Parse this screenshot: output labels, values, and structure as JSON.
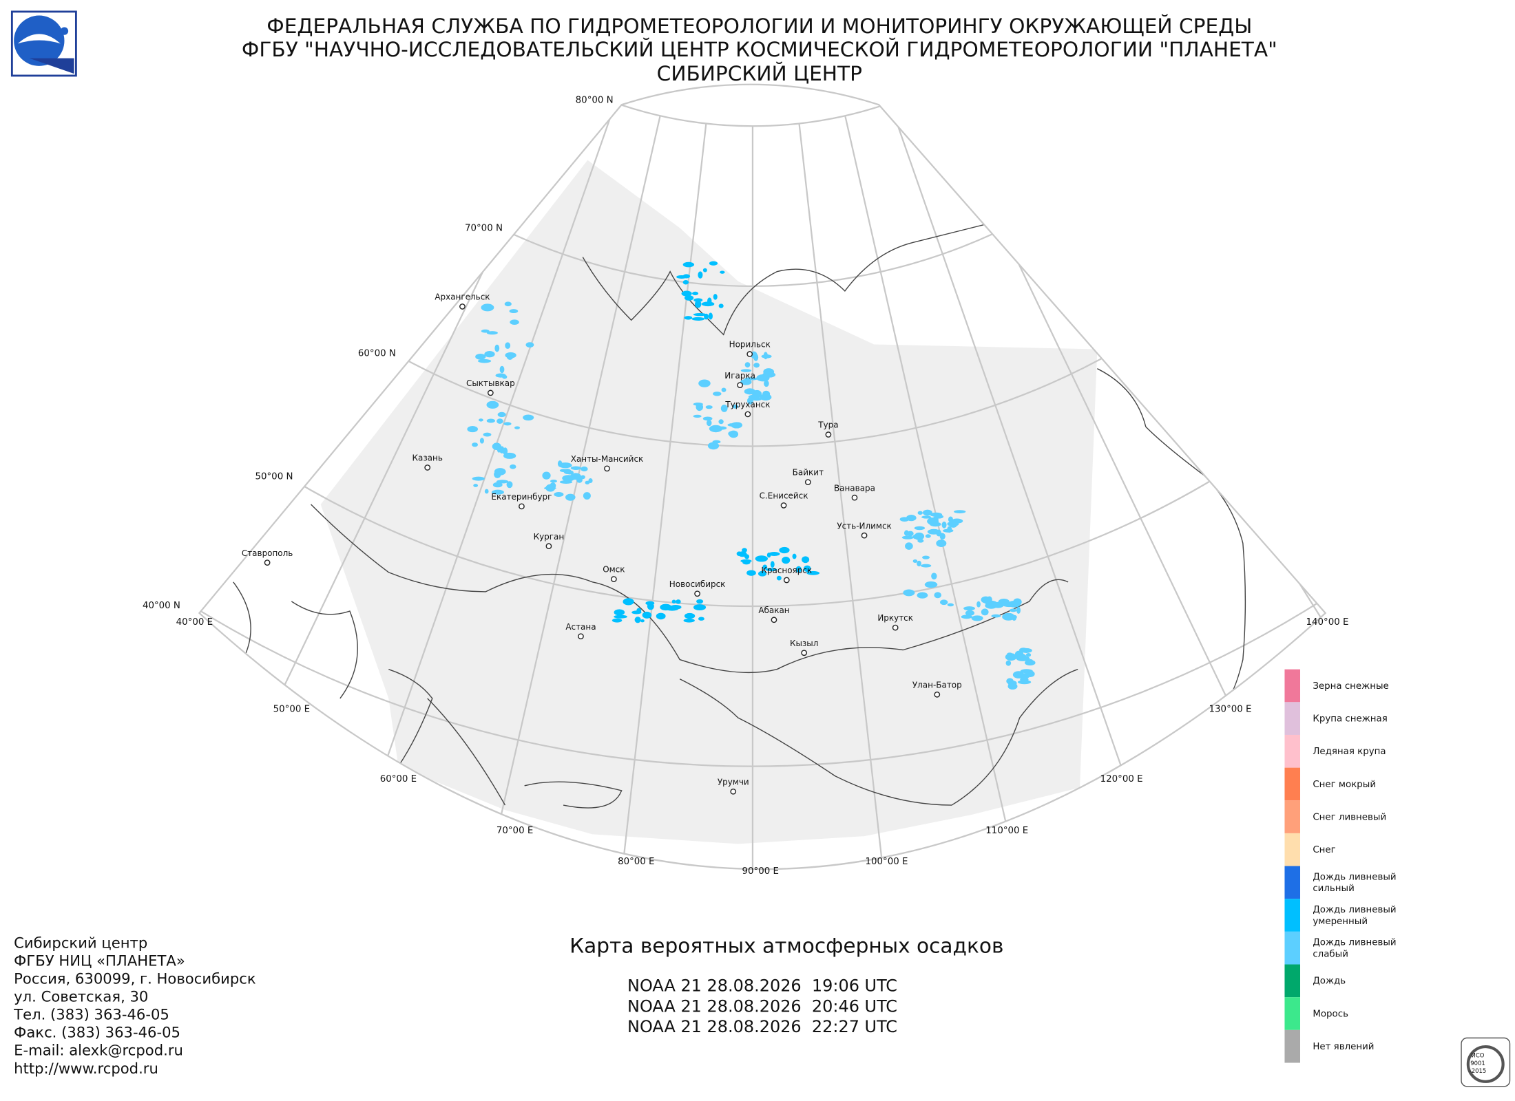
{
  "header": {
    "lines": [
      "ФЕДЕРАЛЬНАЯ СЛУЖБА ПО ГИДРОМЕТЕОРОЛОГИИ И МОНИТОРИНГУ ОКРУЖАЮЩЕЙ СРЕДЫ",
      "ФГБУ \"НАУЧНО-ИССЛЕДОВАТЕЛЬСКИЙ ЦЕНТР КОСМИЧЕСКОЙ ГИДРОМЕТЕОРОЛОГИИ \"ПЛАНЕТА\"",
      "СИБИРСКИЙ ЦЕНТР"
    ]
  },
  "map": {
    "lat_labels": [
      "80°00 N",
      "70°00 N",
      "60°00 N",
      "50°00 N",
      "40°00 N"
    ],
    "lon_labels": [
      "40°00 E",
      "50°00 E",
      "60°00 E",
      "70°00 E",
      "80°00 E",
      "90°00 E",
      "100°00 E",
      "110°00 E",
      "120°00 E",
      "130°00 E",
      "140°00 E"
    ],
    "cities": [
      "Архангельск",
      "Сыктывкар",
      "Казань",
      "Ставрополь",
      "Екатеринбург",
      "Курган",
      "Ханты-Мансийск",
      "Омск",
      "Астана",
      "Новосибирск",
      "Норильск",
      "Игарка",
      "Туруханск",
      "Тура",
      "Байкит",
      "Ванавара",
      "С.Енисейск",
      "Усть-Илимск",
      "Красноярск",
      "Абакан",
      "Кызыл",
      "Иркутск",
      "Улан-Батор",
      "Урумчи"
    ]
  },
  "legend": {
    "items": [
      {
        "label": [
          "Зерна снежные"
        ],
        "color": "#f0789a"
      },
      {
        "label": [
          "Крупа снежная"
        ],
        "color": "#e0c0dc"
      },
      {
        "label": [
          "Ледяная крупа"
        ],
        "color": "#ffc0cc"
      },
      {
        "label": [
          "Снег мокрый"
        ],
        "color": "#ff7f50"
      },
      {
        "label": [
          "Снег ливневый"
        ],
        "color": "#ffa07a"
      },
      {
        "label": [
          "Снег"
        ],
        "color": "#ffdead"
      },
      {
        "label": [
          "Дождь ливневый",
          "сильный"
        ],
        "color": "#1e6fe6"
      },
      {
        "label": [
          "Дождь ливневый",
          "умеренный"
        ],
        "color": "#00bfff"
      },
      {
        "label": [
          "Дождь ливневый",
          "слабый"
        ],
        "color": "#5ccfff"
      },
      {
        "label": [
          "Дождь"
        ],
        "color": "#00a86b"
      },
      {
        "label": [
          "Морось"
        ],
        "color": "#3ce88c"
      },
      {
        "label": [
          "Нет явлений"
        ],
        "color": "#aaaaaa"
      }
    ]
  },
  "footer": {
    "address": [
      "Сибирский центр",
      "ФГБУ НИЦ «ПЛАНЕТА»",
      "Россия, 630099, г. Новосибирск",
      "ул. Советская, 30",
      "Тел. (383) 363-46-05",
      "Факс. (383) 363-46-05",
      "E-mail: alexk@rcpod.ru",
      "http://www.rcpod.ru"
    ],
    "map_title": "Карта вероятных атмосферных осадков",
    "passes": [
      "NOAA 21 28.08.2026  19:06 UTC",
      "NOAA 21 28.08.2026  20:46 UTC",
      "NOAA 21 28.08.2026  22:27 UTC"
    ],
    "iso": [
      "ИСО",
      "9001",
      "-2015"
    ]
  }
}
